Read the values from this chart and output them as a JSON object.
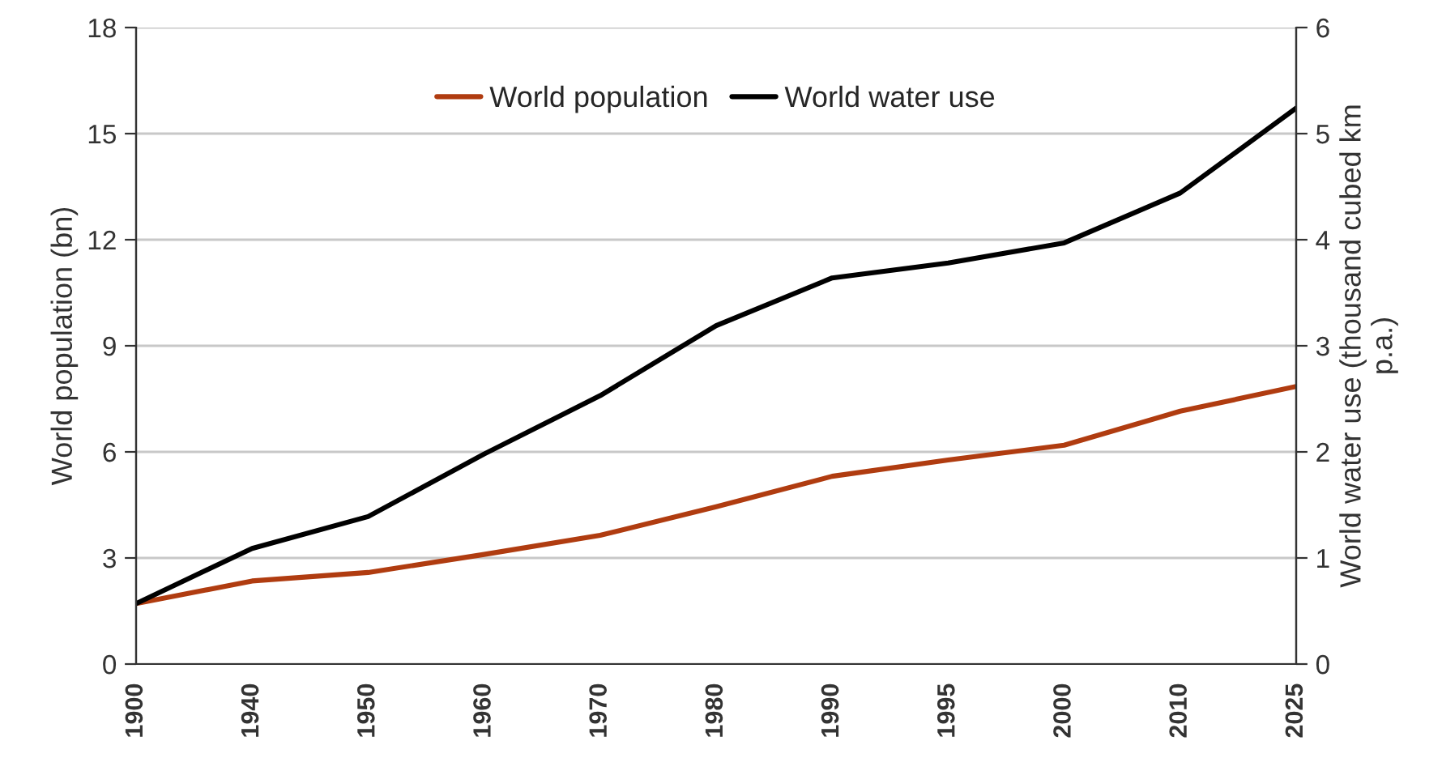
{
  "chart_data": {
    "type": "line",
    "categories": [
      "1900",
      "1940",
      "1950",
      "1960",
      "1970",
      "1980",
      "1990",
      "1995",
      "2000",
      "2010",
      "2025"
    ],
    "series": [
      {
        "name": "World population",
        "color": "#b03c10",
        "values": [
          1.71,
          2.35,
          2.59,
          3.1,
          3.64,
          4.45,
          5.31,
          5.77,
          6.19,
          7.15,
          7.85
        ]
      },
      {
        "name": "World water use",
        "color": "#000000",
        "axis": "y2",
        "values": [
          0.57,
          1.09,
          1.39,
          1.98,
          2.53,
          3.19,
          3.64,
          3.78,
          3.97,
          4.44,
          5.24
        ]
      }
    ],
    "ylabel": "World population (bn)",
    "y2label": "World water use (thousand cubed km\np.a.)",
    "ylim": [
      0,
      18
    ],
    "yticks": [
      0,
      3,
      6,
      9,
      12,
      15,
      18
    ],
    "y2lim": [
      0,
      6
    ],
    "y2ticks": [
      0,
      1,
      2,
      3,
      4,
      5,
      6
    ],
    "grid": "y",
    "legend": "top",
    "line_style": "solid",
    "marker": "none"
  }
}
